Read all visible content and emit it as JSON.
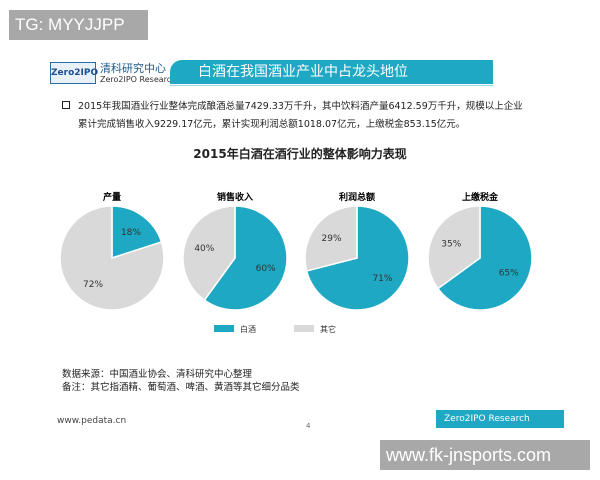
{
  "watermarks": {
    "top": "TG: MYYJJPP",
    "bottom": "www.fk-jnsports.com"
  },
  "header": {
    "logo": "Zero2IPO",
    "org_cn": "清科研究中心",
    "org_en": "Zero2IPO Research",
    "title": "白酒在我国酒业产业中占龙头地位"
  },
  "body": {
    "line1": "2015年我国酒业行业整体完成酿酒总量7429.33万千升，其中饮料酒产量6412.59万千升，规模以上企业",
    "line2": "累计完成销售收入9229.17亿元，累计实现利润总额1018.07亿元，上缴税金853.15亿元。"
  },
  "chart_data": {
    "type": "pie",
    "title": "2015年白酒在酒行业的整体影响力表现",
    "colors": {
      "白酒": "#1ea8c4",
      "其它": "#d9d9d9"
    },
    "legend": [
      "白酒",
      "其它"
    ],
    "legend_placement": "bottom",
    "pies": [
      {
        "title": "产量",
        "values": {
          "白酒": 18,
          "其它": 72
        },
        "labels": [
          "18%",
          "72%"
        ]
      },
      {
        "title": "销售收入",
        "values": {
          "白酒": 60,
          "其它": 40
        },
        "labels": [
          "60%",
          "40%"
        ]
      },
      {
        "title": "利润总额",
        "values": {
          "白酒": 71,
          "其它": 29
        },
        "labels": [
          "71%",
          "29%"
        ]
      },
      {
        "title": "上缴税金",
        "values": {
          "白酒": 65,
          "其它": 35
        },
        "labels": [
          "65%",
          "35%"
        ]
      }
    ]
  },
  "notes": {
    "source": "数据来源：中国酒业协会、清科研究中心整理",
    "remark": "备注：其它指酒精、葡萄酒、啤酒、黄酒等其它细分品类"
  },
  "footer": {
    "site": "www.pedata.cn",
    "page": "4",
    "brand": "Zero2IPO Research"
  }
}
